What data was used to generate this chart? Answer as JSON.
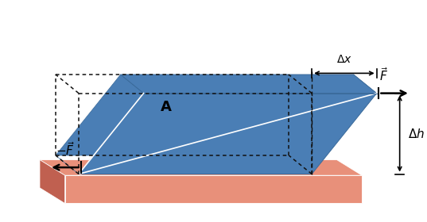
{
  "bg_color": "#ffffff",
  "base_color": "#E8907A",
  "base_top_color": "#D4785F",
  "base_dark_color": "#C06050",
  "block_color": "#4A7EB5",
  "block_edge_color": "#3A6A9A",
  "dotted_color": "#111111",
  "text_color": "#000000",
  "figsize": [
    5.37,
    2.8
  ],
  "dpi": 100,
  "xlim": [
    0,
    10
  ],
  "ylim": [
    0,
    5.0
  ]
}
